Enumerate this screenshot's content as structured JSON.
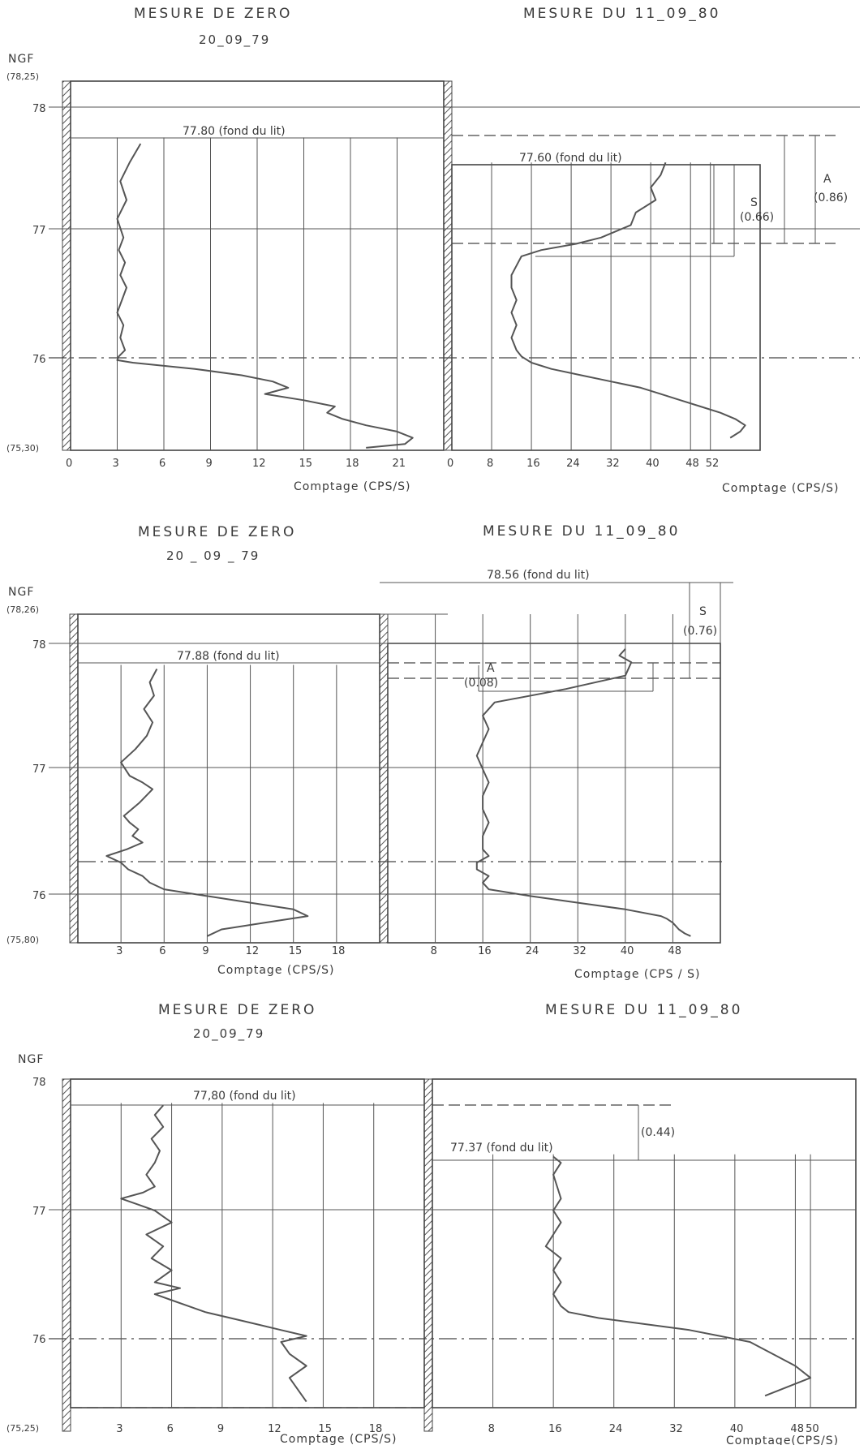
{
  "panels": [
    {
      "left_title": "MESURE DE ZERO",
      "left_date": "20_09_79",
      "right_title": "MESURE  DU  11_09_80",
      "ngf_label": "NGF",
      "top_label": "(78,25)",
      "bottom_label": "(75,30)",
      "y_ticks": [
        "78",
        "77",
        "76"
      ],
      "left_bed": "77.80  (fond du lit)",
      "right_bed": "77.60  (fond du lit)",
      "annotations": [
        "S",
        "(0.66)",
        "A",
        "(0.86)"
      ],
      "left_xlabel": "Comptage (CPS/S)",
      "right_xlabel": "Comptage (CPS/S)"
    },
    {
      "left_title": "MESURE  DE  ZERO",
      "left_date": "20 _ 09 _ 79",
      "right_title": "MESURE  DU  11_09_80",
      "ngf_label": "NGF",
      "top_label": "(78,26)",
      "bottom_label": "(75,80)",
      "y_ticks": [
        "78",
        "77",
        "76"
      ],
      "left_bed": "77.88  (fond du lit)",
      "right_bed": "78.56  (fond du lit)",
      "annotations": [
        "S",
        "(0.76)",
        "A",
        "(0.08)"
      ],
      "left_xlabel": "Comptage (CPS/S)",
      "right_xlabel": "Comptage (CPS / S)"
    },
    {
      "left_title": "MESURE  DE  ZERO",
      "left_date": "20_09_79",
      "right_title": "MESURE  DU  11_09_80",
      "ngf_label": "NGF",
      "top_label": "",
      "bottom_label": "(75,25)",
      "y_ticks": [
        "78",
        "77",
        "76"
      ],
      "left_bed": "77,80  (fond du lit)",
      "right_bed": "77.37  (fond du lit)",
      "annotations": [
        "(0.44)"
      ],
      "left_xlabel": "Comptage (CPS/S)",
      "right_xlabel": "Comptage(CPS/S)"
    }
  ],
  "chart_data": [
    {
      "type": "line",
      "title": "MESURE DE ZERO 20_09_79",
      "xlabel": "Comptage (CPS/S)",
      "ylabel": "NGF",
      "xlim": [
        0,
        24
      ],
      "ylim": [
        75.3,
        78.25
      ],
      "x_ticks": [
        "0",
        "3",
        "6",
        "9",
        "12",
        "15",
        "18",
        "21"
      ],
      "bed_level": 77.8,
      "series": [
        {
          "x": [
            4.5,
            3.8,
            3.2,
            3.6,
            3.0,
            3.4,
            3.1,
            3.5,
            3.2,
            3.6,
            3.3,
            3.0,
            3.4,
            3.2,
            3.5,
            3.1,
            3.0,
            4.0,
            8.0,
            11.0,
            13.0,
            14.0,
            12.5,
            15.0,
            17.0,
            16.5,
            17.5,
            19.0,
            21.0,
            22.0,
            21.5,
            19.0
          ],
          "y": [
            77.75,
            77.6,
            77.45,
            77.3,
            77.15,
            77.0,
            76.9,
            76.8,
            76.7,
            76.6,
            76.5,
            76.4,
            76.3,
            76.2,
            76.1,
            76.05,
            76.02,
            76.0,
            75.95,
            75.9,
            75.85,
            75.8,
            75.75,
            75.7,
            75.65,
            75.6,
            75.55,
            75.5,
            75.45,
            75.4,
            75.35,
            75.32
          ]
        }
      ]
    },
    {
      "type": "line",
      "title": "MESURE DU 11_09_80",
      "xlabel": "Comptage (CPS/S)",
      "ylabel": "NGF",
      "xlim": [
        0,
        62
      ],
      "ylim": [
        75.3,
        78.25
      ],
      "x_ticks": [
        "0",
        "8",
        "16",
        "24",
        "32",
        "40",
        "48",
        "52"
      ],
      "bed_level": 77.6,
      "series": [
        {
          "x": [
            43,
            42,
            40,
            41,
            37,
            36,
            33,
            30,
            25,
            18,
            14,
            12,
            12,
            13,
            12,
            13,
            12,
            13,
            14,
            16,
            20,
            26,
            32,
            38,
            42,
            46,
            50,
            54,
            57,
            59,
            58,
            56
          ],
          "y": [
            77.6,
            77.5,
            77.4,
            77.3,
            77.2,
            77.1,
            77.05,
            77.0,
            76.95,
            76.9,
            76.85,
            76.7,
            76.6,
            76.5,
            76.4,
            76.3,
            76.2,
            76.1,
            76.05,
            76.0,
            75.95,
            75.9,
            75.85,
            75.8,
            75.75,
            75.7,
            75.65,
            75.6,
            75.55,
            75.5,
            75.45,
            75.4
          ]
        }
      ]
    },
    {
      "type": "line",
      "title": "MESURE DE ZERO 20 _ 09 _ 79",
      "xlabel": "Comptage (CPS/S)",
      "ylabel": "NGF",
      "xlim": [
        0,
        21
      ],
      "ylim": [
        75.8,
        78.26
      ],
      "x_ticks": [
        "3",
        "6",
        "9",
        "12",
        "15",
        "18"
      ],
      "bed_level": 77.88,
      "series": [
        {
          "x": [
            5.5,
            5.0,
            5.3,
            4.6,
            5.2,
            4.8,
            4.0,
            3.0,
            3.6,
            4.5,
            5.2,
            4.3,
            3.2,
            3.6,
            4.2,
            3.8,
            4.5,
            3.4,
            2.0,
            3.0,
            3.5,
            4.5,
            5.0,
            6.0,
            9.0,
            12.0,
            15.0,
            16.0,
            13.0,
            10.0,
            9.0
          ],
          "y": [
            77.85,
            77.75,
            77.65,
            77.55,
            77.45,
            77.35,
            77.25,
            77.15,
            77.05,
            77.0,
            76.95,
            76.85,
            76.75,
            76.7,
            76.65,
            76.6,
            76.55,
            76.5,
            76.45,
            76.4,
            76.35,
            76.3,
            76.25,
            76.2,
            76.15,
            76.1,
            76.05,
            76.0,
            75.95,
            75.9,
            75.85
          ]
        }
      ]
    },
    {
      "type": "line",
      "title": "MESURE DU 11_09_80",
      "xlabel": "Comptage (CPS / S)",
      "ylabel": "NGF",
      "xlim": [
        0,
        56
      ],
      "ylim": [
        75.8,
        78.26
      ],
      "x_ticks": [
        "8",
        "16",
        "24",
        "32",
        "40",
        "48"
      ],
      "bed_level": 78.56,
      "series": [
        {
          "x": [
            40,
            39,
            41,
            40,
            30,
            18,
            16,
            17,
            16,
            15,
            16,
            17,
            16,
            16,
            17,
            16,
            16,
            17,
            15,
            15,
            17,
            16,
            17,
            24,
            32,
            40,
            46,
            47,
            48,
            49,
            50,
            51
          ],
          "y": [
            78.0,
            77.95,
            77.9,
            77.8,
            77.7,
            77.6,
            77.5,
            77.4,
            77.3,
            77.2,
            77.1,
            77.0,
            76.9,
            76.8,
            76.7,
            76.6,
            76.5,
            76.45,
            76.4,
            76.35,
            76.3,
            76.25,
            76.2,
            76.15,
            76.1,
            76.05,
            76.0,
            75.98,
            75.95,
            75.9,
            75.87,
            75.85
          ]
        }
      ]
    },
    {
      "type": "line",
      "title": "MESURE DE ZERO 20_09_79",
      "xlabel": "Comptage (CPS/S)",
      "ylabel": "NGF",
      "xlim": [
        0,
        21
      ],
      "ylim": [
        75.25,
        78.0
      ],
      "x_ticks": [
        "3",
        "6",
        "9",
        "12",
        "15",
        "18"
      ],
      "bed_level": 77.8,
      "series": [
        {
          "x": [
            5.5,
            5.0,
            5.5,
            4.8,
            5.3,
            5.0,
            4.5,
            5.0,
            4.3,
            3.0,
            4.0,
            5.0,
            5.5,
            6.0,
            4.5,
            5.5,
            4.8,
            6.0,
            5.0,
            6.5,
            5.0,
            6.0,
            7.0,
            8.0,
            9.5,
            11.0,
            12.5,
            14.0,
            12.5,
            13.0,
            14.0,
            13.0,
            14.0
          ],
          "y": [
            77.78,
            77.7,
            77.6,
            77.5,
            77.4,
            77.3,
            77.2,
            77.1,
            77.05,
            77.0,
            76.95,
            76.9,
            76.85,
            76.8,
            76.7,
            76.6,
            76.5,
            76.4,
            76.3,
            76.25,
            76.2,
            76.15,
            76.1,
            76.05,
            76.0,
            75.95,
            75.9,
            75.85,
            75.8,
            75.7,
            75.6,
            75.5,
            75.3
          ]
        }
      ]
    },
    {
      "type": "line",
      "title": "MESURE DU 11_09_80",
      "xlabel": "Comptage(CPS/S)",
      "ylabel": "NGF",
      "xlim": [
        0,
        56
      ],
      "ylim": [
        75.25,
        78.0
      ],
      "x_ticks": [
        "8",
        "16",
        "24",
        "32",
        "40",
        "48",
        "50"
      ],
      "bed_level": 77.37,
      "series": [
        {
          "x": [
            16,
            17,
            16,
            16.5,
            17,
            16,
            17,
            16,
            15,
            17,
            16,
            17,
            16,
            17,
            18,
            22,
            28,
            34,
            38,
            42,
            45,
            48,
            50,
            46,
            44
          ],
          "y": [
            77.35,
            77.3,
            77.2,
            77.1,
            77.0,
            76.9,
            76.8,
            76.7,
            76.6,
            76.5,
            76.4,
            76.3,
            76.2,
            76.1,
            76.05,
            76.0,
            75.95,
            75.9,
            75.85,
            75.8,
            75.7,
            75.6,
            75.5,
            75.4,
            75.35
          ]
        }
      ]
    }
  ]
}
